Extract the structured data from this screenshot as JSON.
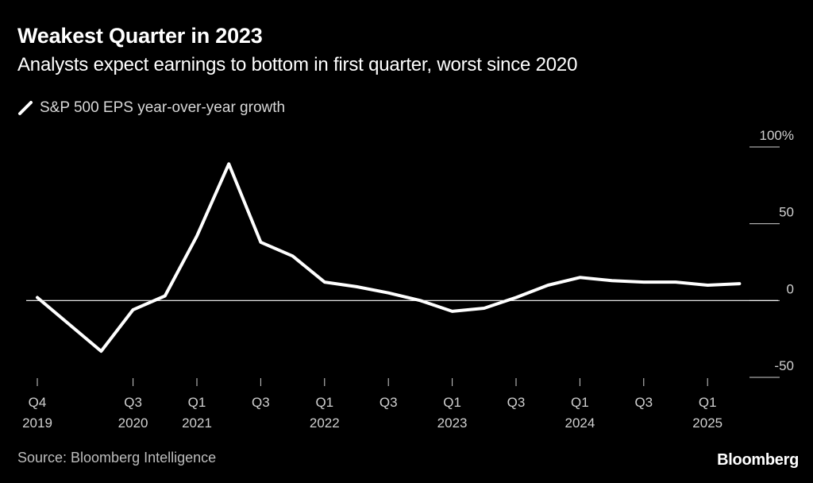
{
  "chart_data": {
    "type": "line",
    "title": "Weakest Quarter in 2023",
    "subtitle": "Analysts expect earnings to bottom in first quarter, worst since 2020",
    "legend": [
      {
        "name": "S&P 500 EPS year-over-year growth",
        "color": "#ffffff"
      }
    ],
    "ylabel": "",
    "xlabel": "",
    "ylim": [
      -50,
      100
    ],
    "y_ticks": [
      {
        "value": 100,
        "label": "100%"
      },
      {
        "value": 50,
        "label": "50"
      },
      {
        "value": 0,
        "label": "0"
      },
      {
        "value": -50,
        "label": "-50"
      }
    ],
    "x_ticks": [
      {
        "quarter": 0,
        "line1": "Q4",
        "line2": "2019"
      },
      {
        "quarter": 3,
        "line1": "Q3",
        "line2": "2020"
      },
      {
        "quarter": 5,
        "line1": "Q1",
        "line2": "2021"
      },
      {
        "quarter": 7,
        "line1": "Q3",
        "line2": ""
      },
      {
        "quarter": 9,
        "line1": "Q1",
        "line2": "2022"
      },
      {
        "quarter": 11,
        "line1": "Q3",
        "line2": ""
      },
      {
        "quarter": 13,
        "line1": "Q1",
        "line2": "2023"
      },
      {
        "quarter": 15,
        "line1": "Q3",
        "line2": ""
      },
      {
        "quarter": 17,
        "line1": "Q1",
        "line2": "2024"
      },
      {
        "quarter": 19,
        "line1": "Q3",
        "line2": ""
      },
      {
        "quarter": 21,
        "line1": "Q1",
        "line2": "2025"
      }
    ],
    "x_range": [
      0,
      22.8
    ],
    "series": [
      {
        "name": "S&P 500 EPS year-over-year growth",
        "color": "#ffffff",
        "points": [
          {
            "q": 0,
            "value": 2
          },
          {
            "q": 2,
            "value": -33
          },
          {
            "q": 3,
            "value": -6
          },
          {
            "q": 4,
            "value": 3
          },
          {
            "q": 5,
            "value": 42
          },
          {
            "q": 6,
            "value": 89
          },
          {
            "q": 7,
            "value": 38
          },
          {
            "q": 8,
            "value": 29
          },
          {
            "q": 9,
            "value": 12
          },
          {
            "q": 10,
            "value": 9
          },
          {
            "q": 11,
            "value": 5
          },
          {
            "q": 12,
            "value": 0
          },
          {
            "q": 13,
            "value": -7
          },
          {
            "q": 14,
            "value": -5
          },
          {
            "q": 15,
            "value": 2
          },
          {
            "q": 16,
            "value": 10
          },
          {
            "q": 17,
            "value": 15
          },
          {
            "q": 18,
            "value": 13
          },
          {
            "q": 19,
            "value": 12
          },
          {
            "q": 20,
            "value": 12
          },
          {
            "q": 21,
            "value": 10
          },
          {
            "q": 22,
            "value": 11
          }
        ]
      }
    ],
    "grid": false
  },
  "footer": {
    "source": "Source: Bloomberg Intelligence",
    "brand": "Bloomberg"
  }
}
